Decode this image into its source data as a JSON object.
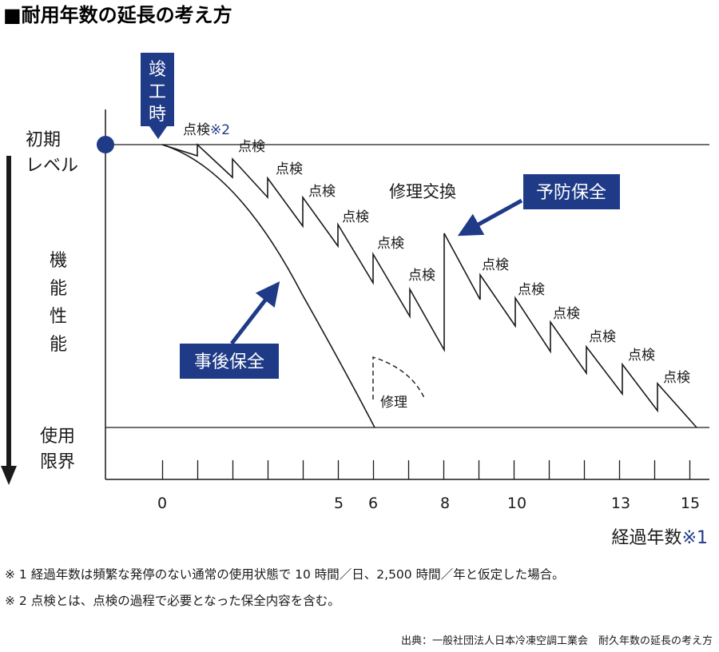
{
  "title": "■耐用年数の延長の考え方",
  "y_top_label": [
    "初期",
    "レベル"
  ],
  "y_axis_label": [
    "機",
    "能",
    "性",
    "能"
  ],
  "y_bottom_label": [
    "使用",
    "限界"
  ],
  "x_axis_label_main": "経過年数",
  "x_axis_label_ref": "※1",
  "x_tick_labels": [
    "0",
    "5",
    "6",
    "8",
    "10",
    "13",
    "15"
  ],
  "completion_box": [
    "竣",
    "工",
    "時"
  ],
  "first_inspection_main": "点検",
  "first_inspection_ref": "※2",
  "inspection_label": "点検",
  "repair_exchange_label": "修理交換",
  "preventive_box": "予防保全",
  "corrective_box": "事後保全",
  "repair_label": "修理",
  "footnote_1": "※ 1  経過年数は頻繁な発停のない通常の使用状態で 10 時間／日、2,500 時間／年と仮定した場合。",
  "footnote_2": "※ 2  点検とは、点検の過程で必要となった保全内容を含む。",
  "source": "出典：一般社団法人日本冷凍空調工業会　耐久年数の延長の考え方",
  "colors": {
    "accent": "#1f3b87",
    "line": "#1a1a1a"
  }
}
